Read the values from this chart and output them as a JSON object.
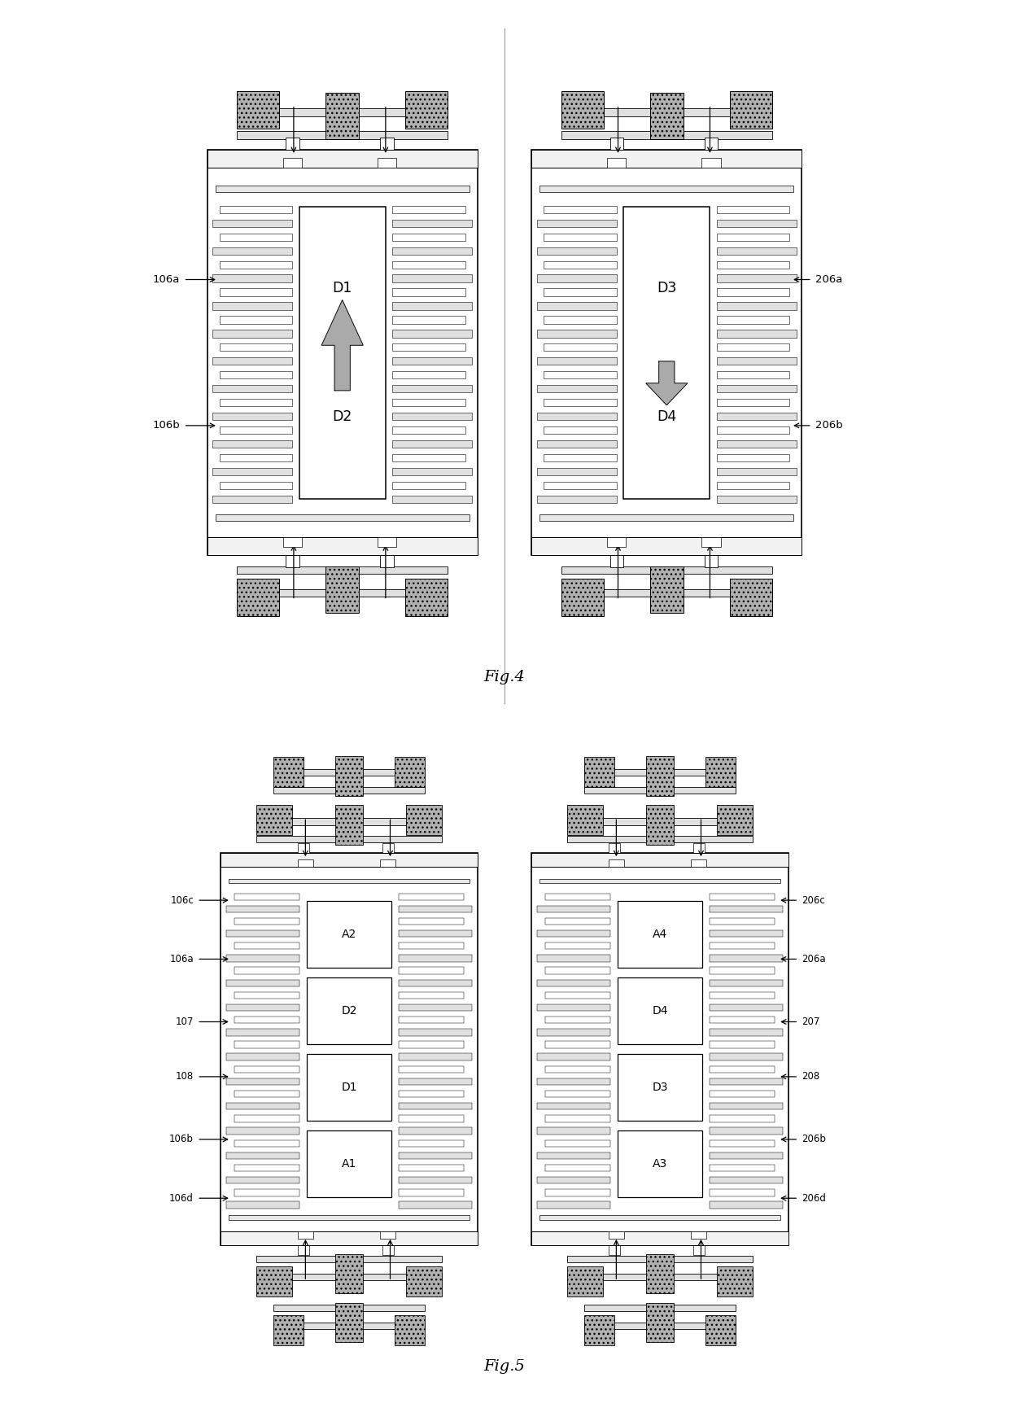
{
  "fig4_title": "Fig.4",
  "fig5_title": "Fig.5",
  "bg_color": "#ffffff",
  "gray_texture": "#aaaaaa",
  "gray_pad": "#b0b0b0",
  "gray_beam": "#d8d8d8",
  "labels_fig4_left": [
    "106a",
    "106b"
  ],
  "labels_fig4_right": [
    "206a",
    "206b"
  ],
  "labels_fig5_left": [
    "106c",
    "106a",
    "107",
    "108",
    "106b",
    "106d"
  ],
  "labels_fig5_right": [
    "206c",
    "206a",
    "207",
    "208",
    "206b",
    "206d"
  ],
  "region_labels_fig4_left": [
    "D1",
    "D2"
  ],
  "region_labels_fig4_right": [
    "D3",
    "D4"
  ],
  "region_labels_fig5_left": [
    "A1",
    "D1",
    "D2",
    "A2"
  ],
  "region_labels_fig5_right": [
    "A3",
    "D3",
    "D4",
    "A4"
  ]
}
